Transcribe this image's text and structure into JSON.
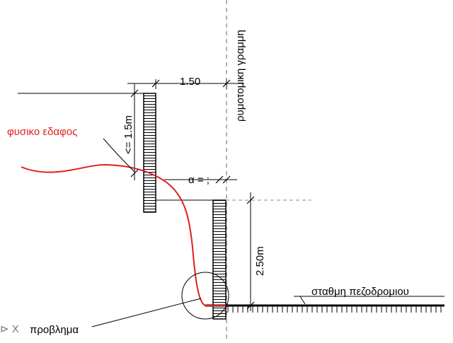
{
  "colors": {
    "terrain": "#e02020",
    "ink": "#000000",
    "dashed": "#666666"
  },
  "labels": {
    "natural_ground": "φυσικο εδαφος",
    "building_line": "ρυμοτομικη γραμμη",
    "top_dimension": "1.50",
    "max_height": "<= 1.5m",
    "offset": "α = ;",
    "wall_height": "2.50m",
    "pavement_level": "σταθμη πεζοδρομιου",
    "problem": "προβλημα",
    "problem_marker": "⊳ X"
  }
}
